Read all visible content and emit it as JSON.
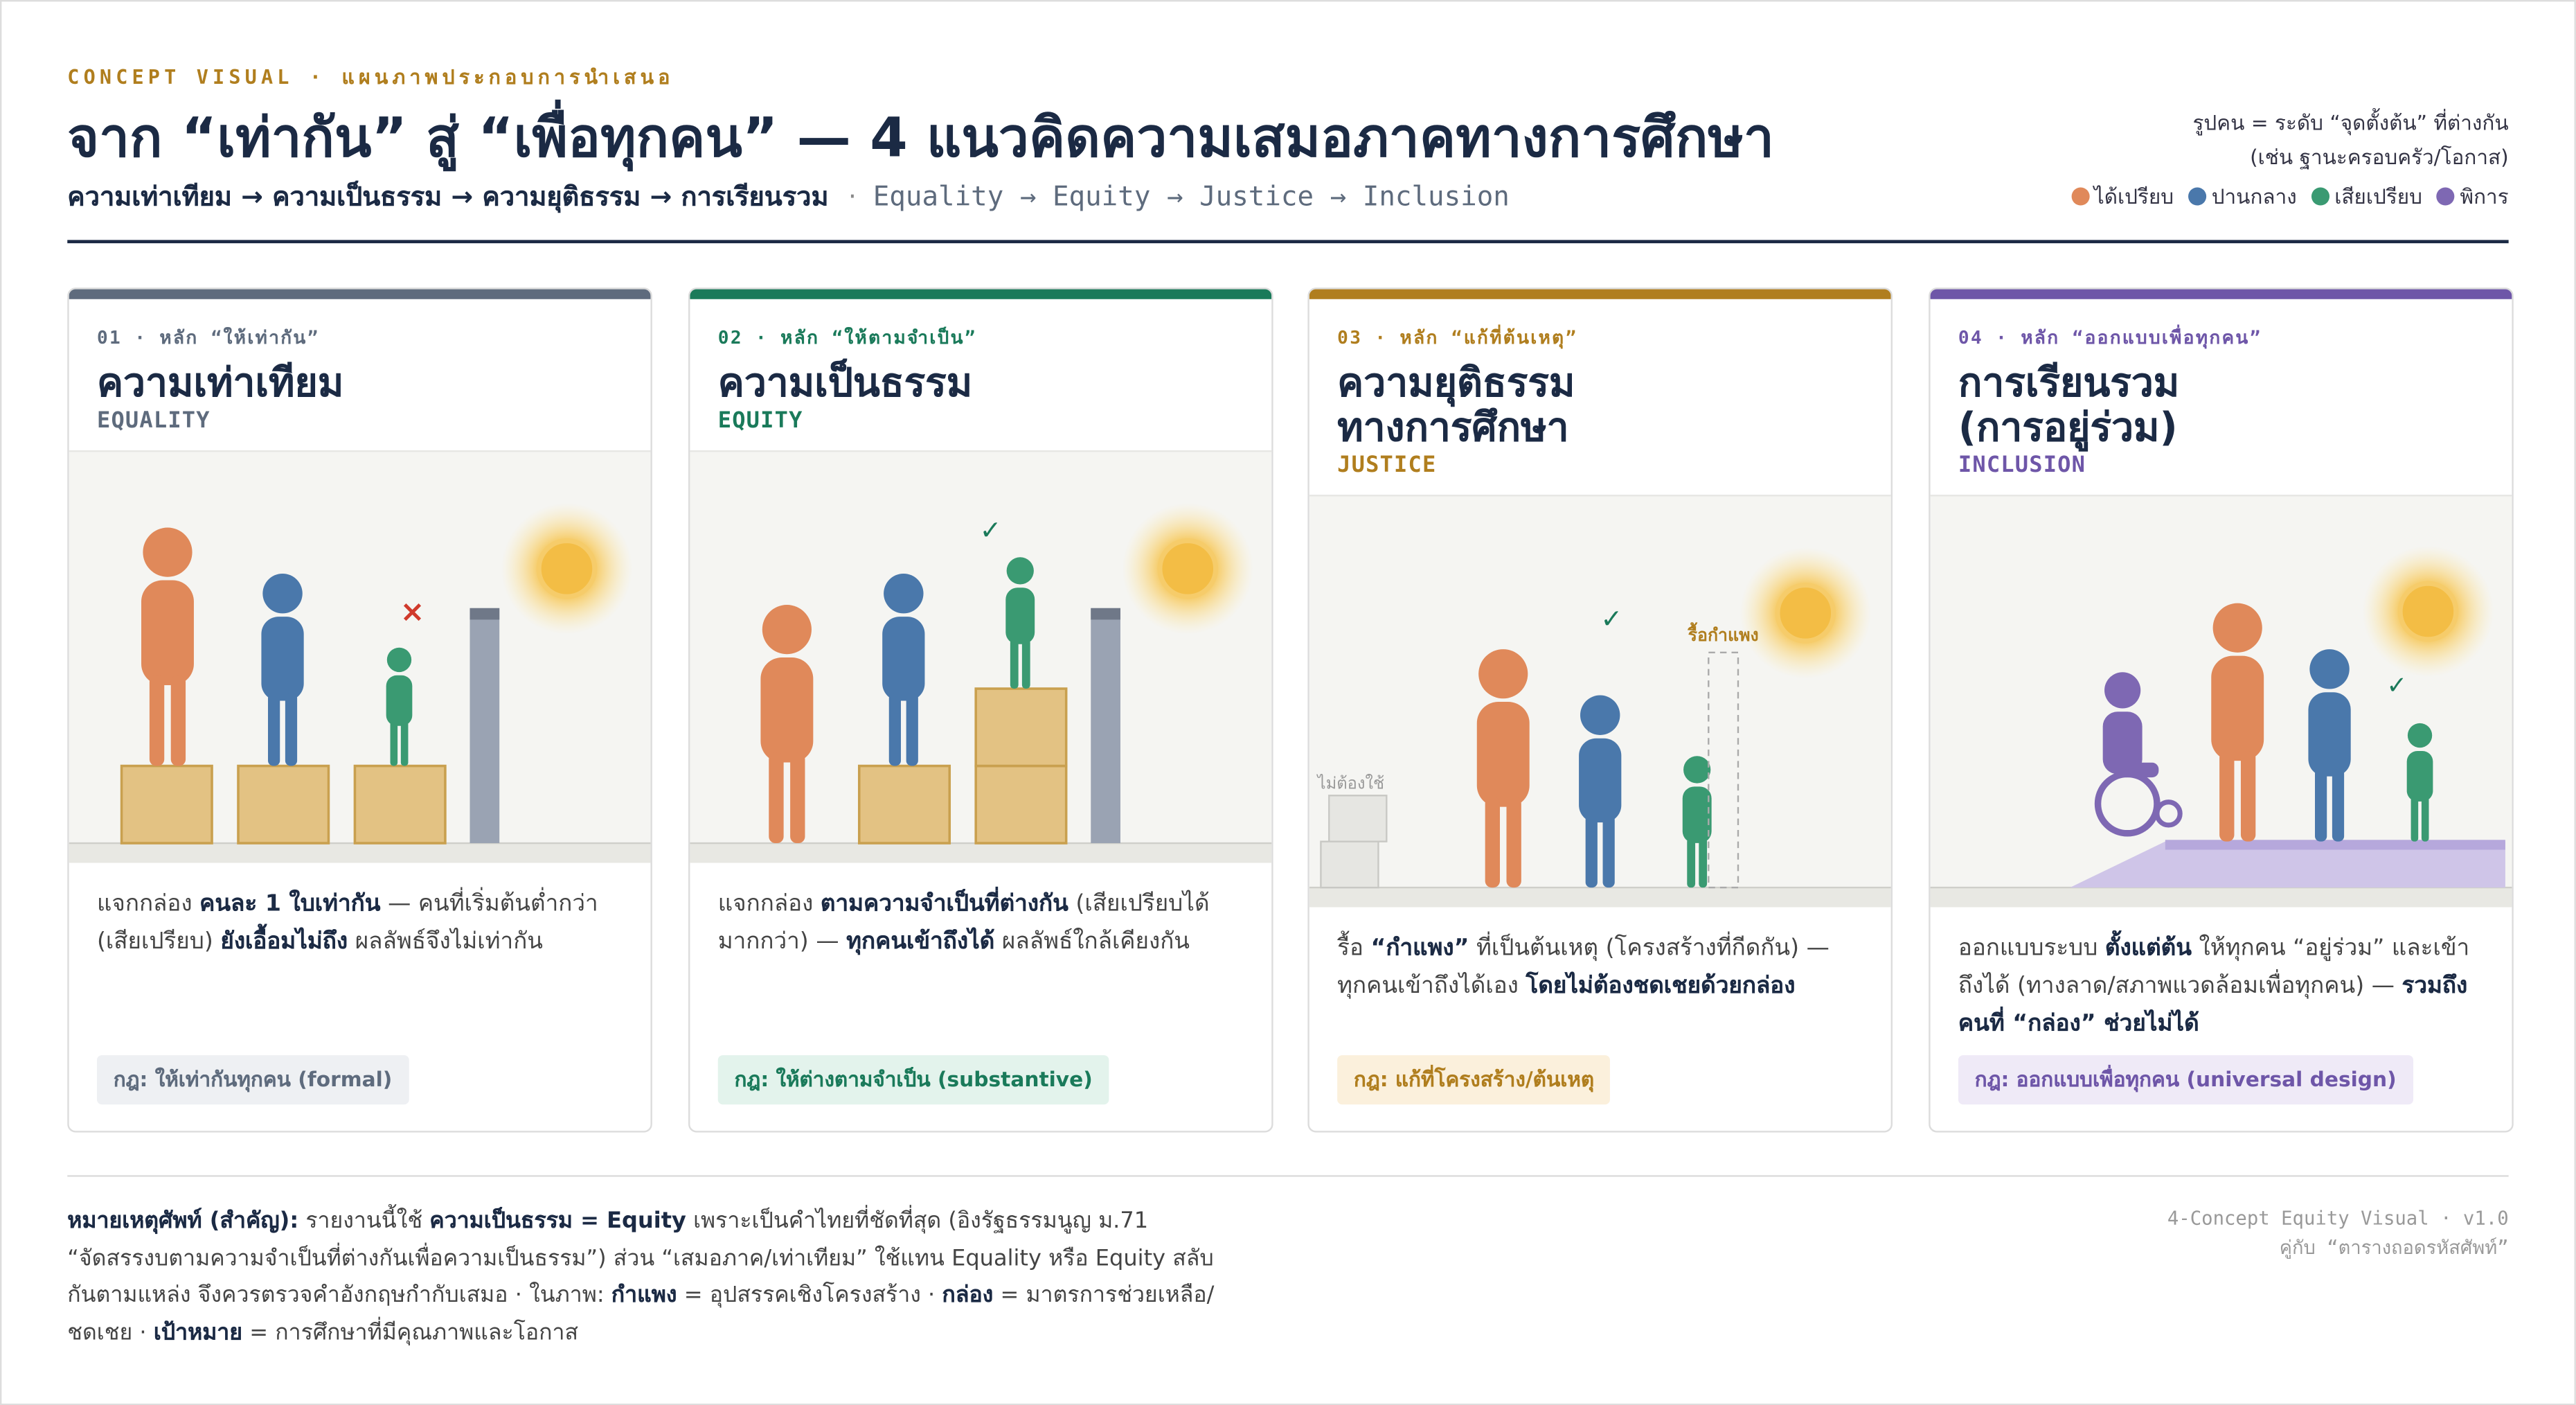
{
  "header": {
    "kicker": "CONCEPT VISUAL · แผนภาพประกอบการนำเสนอ",
    "title": "จาก “เท่ากัน” สู่ “เพื่อทุกคน” — 4 แนวคิดความเสมอภาคทางการศึกษา",
    "subtitle_th": "ความเท่าเทียม → ความเป็นธรรม → ความยุติธรรม → การเรียนรวม",
    "separator": "·",
    "subtitle_en": "Equality → Equity → Justice → Inclusion"
  },
  "legend": {
    "note": [
      "รูปคน = ระดับ “จุดตั้งต้น” ที่ต่างกัน",
      "(เช่น ฐานะครอบครัว/โอกาส)"
    ],
    "items": [
      {
        "label": "ได้เปรียบ",
        "color": "#e0895a"
      },
      {
        "label": "ปานกลาง",
        "color": "#4a78ab"
      },
      {
        "label": "เสียเปรียบ",
        "color": "#3a9a72"
      },
      {
        "label": "พิการ",
        "color": "#7e68b3"
      }
    ]
  },
  "cards": [
    {
      "number_label": "01 · หลัก “ให้เท่ากัน”",
      "title": [
        "ความเท่าเทียม"
      ],
      "english": "EQUALITY",
      "color": "#5e6b7d",
      "tag_bg": "#eef0f3",
      "marks": [
        "×"
      ],
      "description": [
        {
          "text": "แจกกล่อง ",
          "bold": false
        },
        {
          "text": "คนละ 1 ใบเท่ากัน",
          "bold": true
        },
        {
          "text": " — คนที่เริ่มต้นต่ำกว่า (เสียเปรียบ) ",
          "bold": false
        },
        {
          "text": "ยังเอื้อมไม่ถึง",
          "bold": true
        },
        {
          "text": " ผลลัพธ์จึงไม่เท่ากัน",
          "bold": false
        }
      ],
      "rule": "กฎ: ให้เท่ากันทุกคน (formal)"
    },
    {
      "number_label": "02 · หลัก “ให้ตามจำเป็น”",
      "title": [
        "ความเป็นธรรม"
      ],
      "english": "EQUITY",
      "color": "#1a7a5a",
      "tag_bg": "#e3f3ec",
      "marks": [
        "✓"
      ],
      "description": [
        {
          "text": "แจกกล่อง ",
          "bold": false
        },
        {
          "text": "ตามความจำเป็นที่ต่างกัน",
          "bold": true
        },
        {
          "text": " (เสียเปรียบได้มากกว่า) — ",
          "bold": false
        },
        {
          "text": "ทุกคนเข้าถึงได้",
          "bold": true
        },
        {
          "text": " ผลลัพธ์ใกล้เคียงกัน",
          "bold": false
        }
      ],
      "rule": "กฎ: ให้ต่างตามจำเป็น (substantive)"
    },
    {
      "number_label": "03 · หลัก “แก้ที่ต้นเหตุ”",
      "title": [
        "ความยุติธรรม",
        "ทางการศึกษา"
      ],
      "english": "JUSTICE",
      "color": "#b07e1e",
      "tag_bg": "#fbf0dc",
      "marks": [
        "✓",
        "รื้อกำแพง",
        "ไม่ต้องใช้"
      ],
      "description": [
        {
          "text": "รื้อ ",
          "bold": false
        },
        {
          "text": "“กำแพง”",
          "bold": true
        },
        {
          "text": " ที่เป็นต้นเหตุ (โครงสร้างที่กีดกัน) — ทุกคนเข้าถึงได้เอง ",
          "bold": false
        },
        {
          "text": "โดยไม่ต้องชดเชยด้วยกล่อง",
          "bold": true
        }
      ],
      "rule": "กฎ: แก้ที่โครงสร้าง/ต้นเหตุ"
    },
    {
      "number_label": "04 · หลัก “ออกแบบเพื่อทุกคน”",
      "title": [
        "การเรียนรวม",
        "(การอยู่ร่วม)"
      ],
      "english": "INCLUSION",
      "color": "#6e56a8",
      "tag_bg": "#efeaf7",
      "marks": [
        "✓"
      ],
      "description": [
        {
          "text": "ออกแบบระบบ ",
          "bold": false
        },
        {
          "text": "ตั้งแต่ต้น",
          "bold": true
        },
        {
          "text": " ให้ทุกคน “อยู่ร่วม” และเข้าถึงได้ (ทางลาด/สภาพแวดล้อมเพื่อทุกคน) — ",
          "bold": false
        },
        {
          "text": "รวมถึงคนที่ “กล่อง” ช่วยไม่ได้",
          "bold": true
        }
      ],
      "rule": "กฎ: ออกแบบเพื่อทุกคน (universal design)"
    }
  ],
  "footer": {
    "note": [
      {
        "text": "หมายเหตุศัพท์ (สำคัญ):",
        "bold": true
      },
      {
        "text": " รายงานนี้ใช้ ",
        "bold": false
      },
      {
        "text": "ความเป็นธรรม = Equity",
        "bold": true
      },
      {
        "text": " เพราะเป็นคำไทยที่ชัดที่สุด (อิงรัฐธรรมนูญ ม.71 “จัดสรรงบตามความจำเป็นที่ต่างกันเพื่อความเป็นธรรม”) ส่วน “เสมอภาค/เท่าเทียม” ใช้แทน Equality หรือ Equity สลับกันตามแหล่ง จึงควรตรวจคำอังกฤษกำกับเสมอ · ในภาพ: ",
        "bold": false
      },
      {
        "text": "กำแพง",
        "bold": true
      },
      {
        "text": " = อุปสรรคเชิงโครงสร้าง · ",
        "bold": false
      },
      {
        "text": "กล่อง",
        "bold": true
      },
      {
        "text": " = มาตรการช่วยเหลือ/ชดเชย · ",
        "bold": false
      },
      {
        "text": "เป้าหมาย",
        "bold": true
      },
      {
        "text": " = การศึกษาที่มีคุณภาพและโอกาส",
        "bold": false
      }
    ],
    "meta": [
      "4-Concept Equity Visual · v1.0",
      "คู่กับ “ตารางถอดรหัสศัพท์”"
    ]
  }
}
